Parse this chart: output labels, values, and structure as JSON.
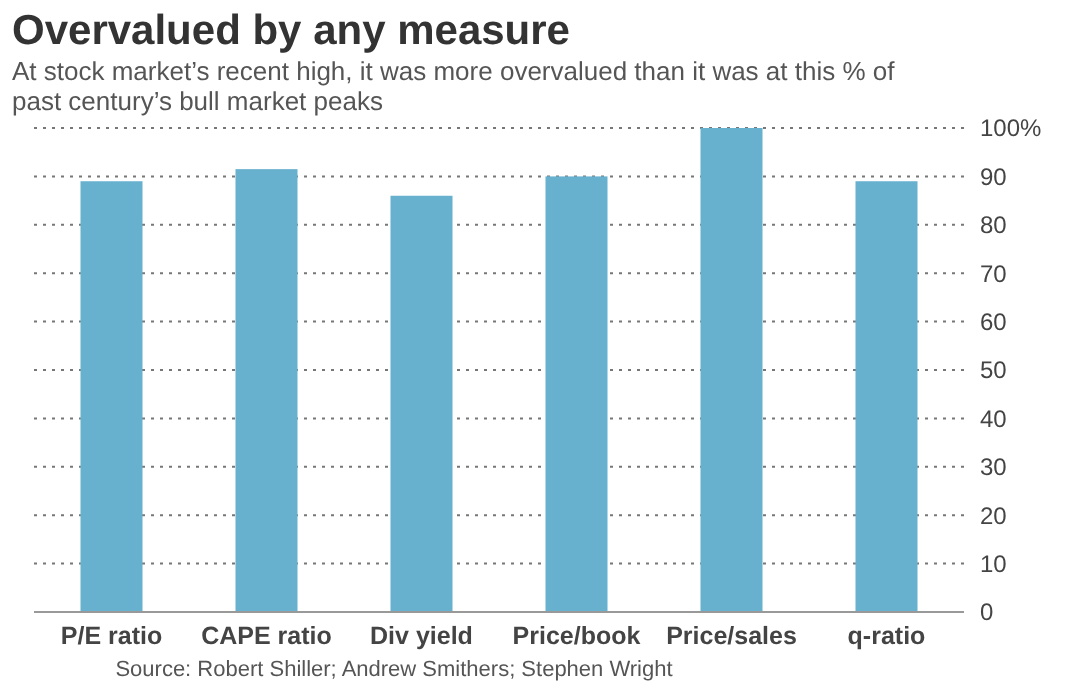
{
  "chart_data": {
    "type": "bar",
    "title": "Overvalued by any measure",
    "subtitle": "At stock market’s recent high, it was more overvalued than it was at this % of past century’s bull market peaks",
    "categories": [
      "P/E ratio",
      "CAPE ratio",
      "Div yield",
      "Price/book",
      "Price/sales",
      "q-ratio"
    ],
    "values": [
      89,
      91.5,
      86,
      90,
      100,
      89
    ],
    "color": "#67b1cf",
    "ylim": [
      0,
      100
    ],
    "yticks": [
      0,
      10,
      20,
      30,
      40,
      50,
      60,
      70,
      80,
      90,
      {
        "value": 100,
        "label": "100%"
      }
    ],
    "grid": "y",
    "annotations": [
      "Source: Robert Shiller; Andrew Smithers; Stephen Wright"
    ]
  }
}
